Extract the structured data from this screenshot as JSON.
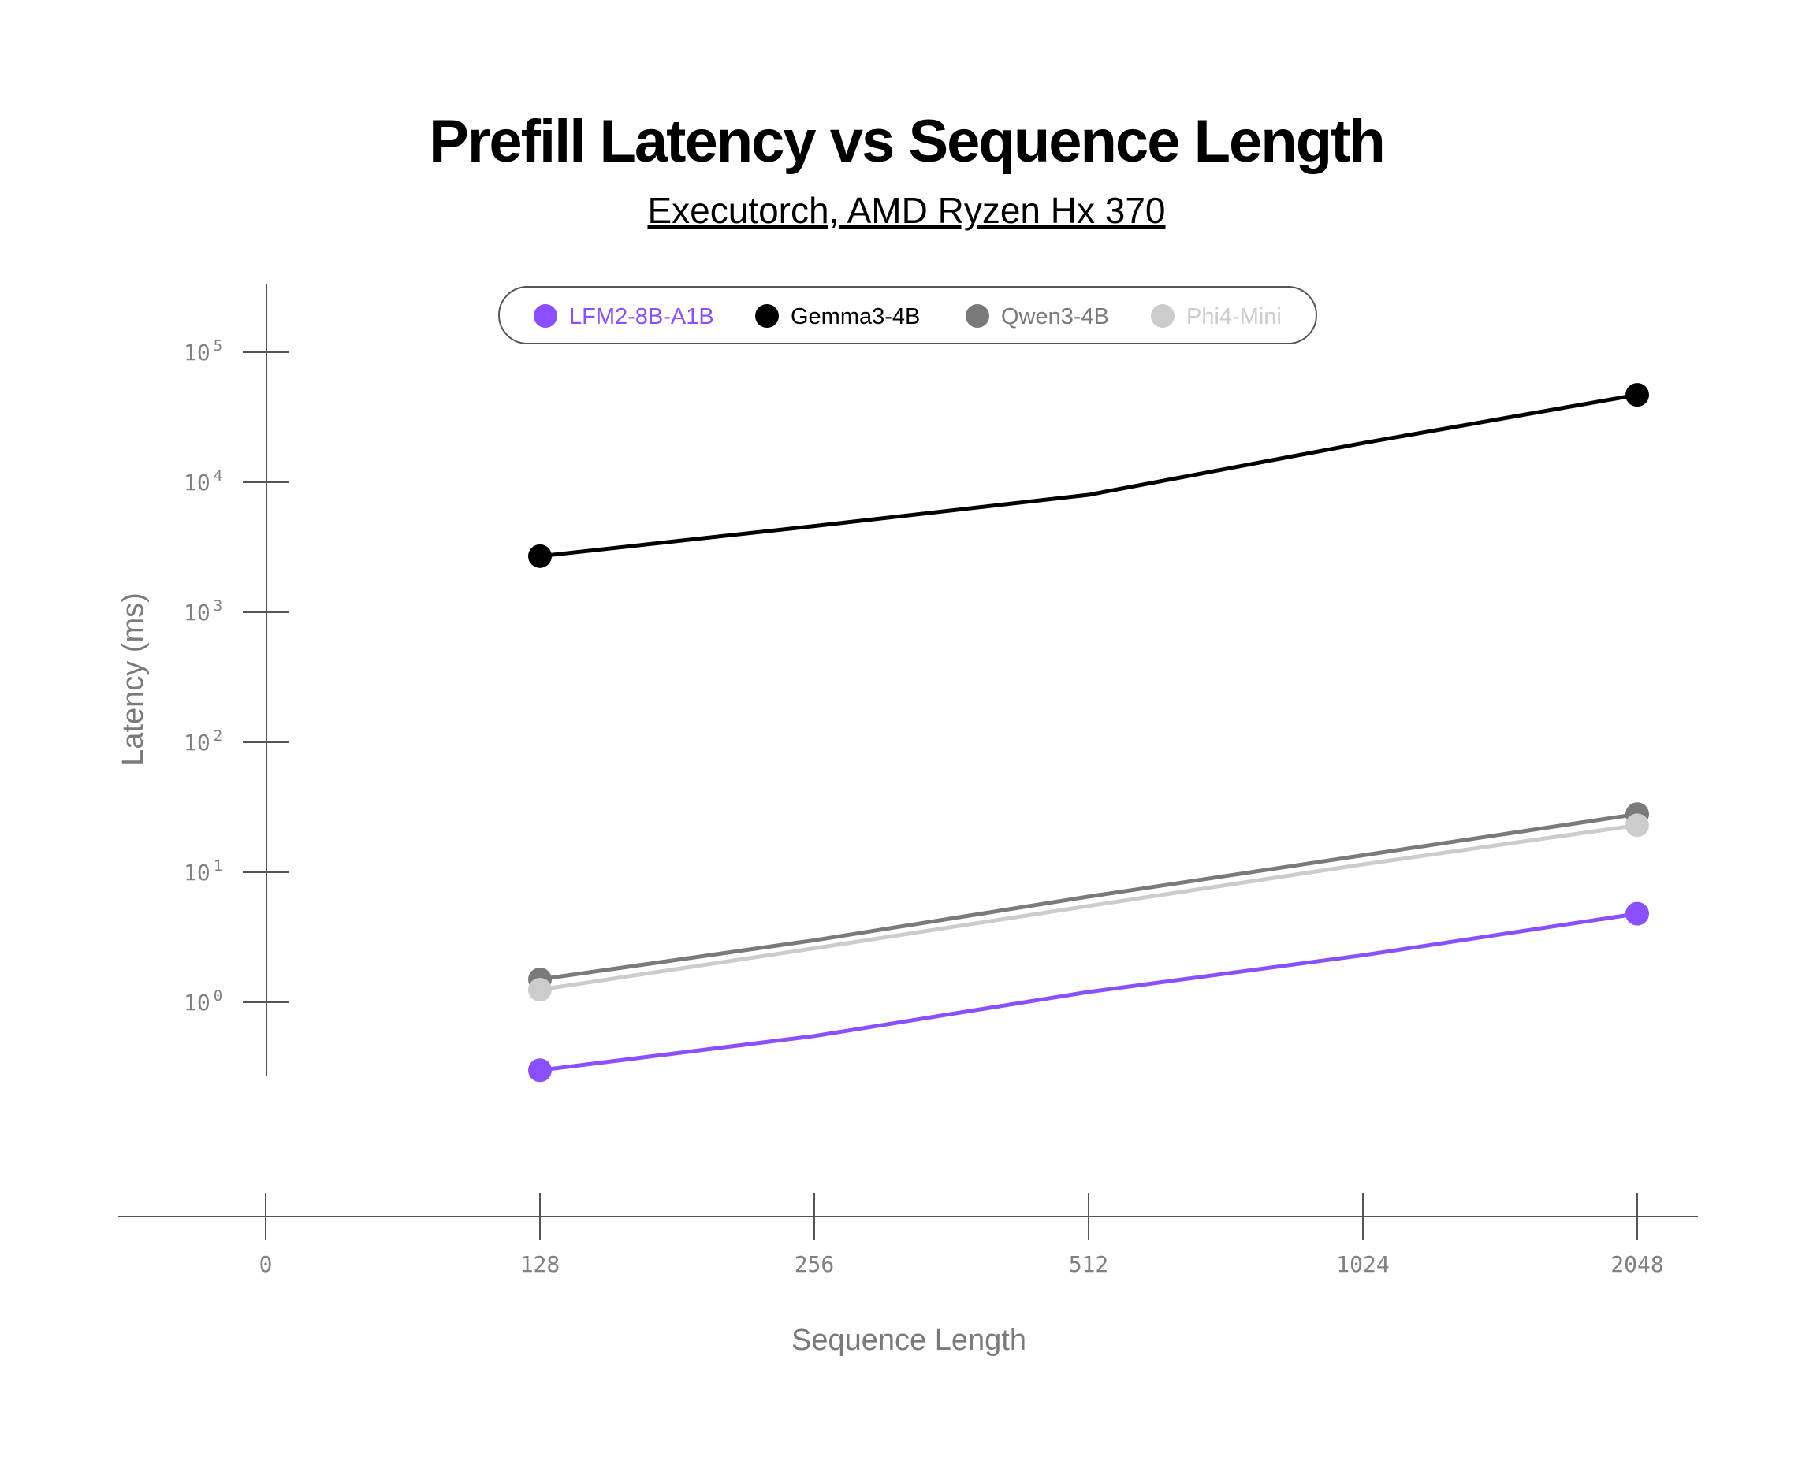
{
  "chart_data": {
    "type": "line",
    "title": "Prefill Latency vs Sequence Length",
    "subtitle": "Executorch, AMD Ryzen Hx 370",
    "xlabel": "Sequence Length",
    "ylabel": "Latency (ms)",
    "x_scale": "log2",
    "y_scale": "log10",
    "x_ticks": [
      {
        "label": "0",
        "index": 0
      },
      {
        "label": "128",
        "index": 1
      },
      {
        "label": "256",
        "index": 2
      },
      {
        "label": "512",
        "index": 3
      },
      {
        "label": "1024",
        "index": 4
      },
      {
        "label": "2048",
        "index": 5
      }
    ],
    "y_ticks": [
      {
        "base": "10",
        "exp": "0",
        "value": 1
      },
      {
        "base": "10",
        "exp": "1",
        "value": 10
      },
      {
        "base": "10",
        "exp": "2",
        "value": 100
      },
      {
        "base": "10",
        "exp": "3",
        "value": 1000
      },
      {
        "base": "10",
        "exp": "4",
        "value": 10000
      },
      {
        "base": "10",
        "exp": "5",
        "value": 100000
      }
    ],
    "ylim": [
      0.2,
      150000
    ],
    "grid": false,
    "legend_position": "top-center",
    "series": [
      {
        "name": "LFM2-8B-A1B",
        "color": "#8a4fff",
        "points": [
          [
            128,
            0.3
          ],
          [
            256,
            0.55
          ],
          [
            512,
            1.2
          ],
          [
            1024,
            2.3
          ],
          [
            2048,
            4.8
          ]
        ]
      },
      {
        "name": "Gemma3-4B",
        "color": "#000000",
        "points": [
          [
            128,
            2700
          ],
          [
            256,
            4600
          ],
          [
            512,
            8000
          ],
          [
            1024,
            20000
          ],
          [
            2048,
            47000
          ]
        ]
      },
      {
        "name": "Qwen3-4B",
        "color": "#7a7a7a",
        "points": [
          [
            128,
            1.5
          ],
          [
            256,
            3.0
          ],
          [
            512,
            6.5
          ],
          [
            1024,
            13.5
          ],
          [
            2048,
            28
          ]
        ]
      },
      {
        "name": "Phi4-Mini",
        "color": "#cccccc",
        "points": [
          [
            128,
            1.25
          ],
          [
            256,
            2.6
          ],
          [
            512,
            5.5
          ],
          [
            1024,
            11.5
          ],
          [
            2048,
            23
          ]
        ]
      }
    ]
  }
}
